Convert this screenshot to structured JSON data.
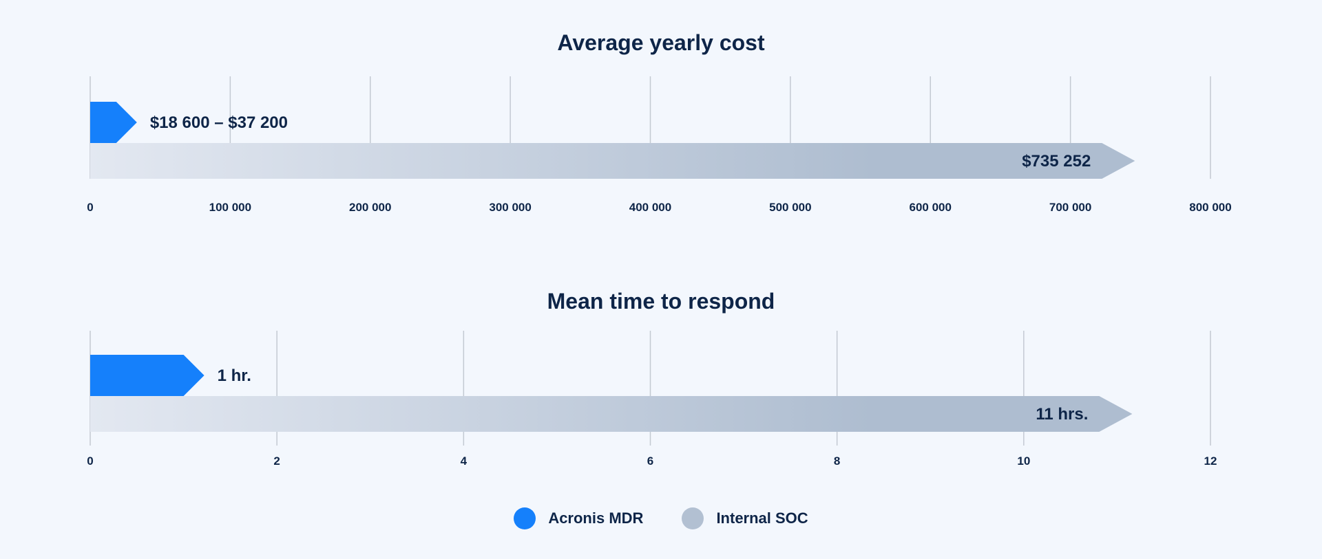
{
  "colors": {
    "acronis": "#1580fb",
    "internal_start": "#e3e8f1",
    "internal_end": "#aebdd0",
    "grid": "#c3c9d2",
    "text": "#0e2548"
  },
  "legend": [
    {
      "name": "Acronis MDR",
      "color": "#1580fb"
    },
    {
      "name": "Internal SOC",
      "color": "#b2c0d2"
    }
  ],
  "chart_data": [
    {
      "type": "bar",
      "orientation": "horizontal",
      "title": "Average yearly cost",
      "xlim": [
        0,
        800000
      ],
      "ticks": [
        0,
        100000,
        200000,
        300000,
        400000,
        500000,
        600000,
        700000,
        800000
      ],
      "tick_labels": [
        "0",
        "100 000",
        "200 000",
        "300 000",
        "400 000",
        "500 000",
        "600 000",
        "700 000",
        "800 000"
      ],
      "grid": true,
      "series": [
        {
          "name": "Acronis MDR",
          "value": 18600,
          "value_high": 37200,
          "label": "$18 600 – $37 200"
        },
        {
          "name": "Internal SOC",
          "value": 735252,
          "label": "$735 252"
        }
      ]
    },
    {
      "type": "bar",
      "orientation": "horizontal",
      "title": "Mean time to respond",
      "xlim": [
        0,
        12
      ],
      "ticks": [
        0,
        2,
        4,
        6,
        8,
        10,
        12
      ],
      "tick_labels": [
        "0",
        "2",
        "4",
        "6",
        "8",
        "10",
        "12"
      ],
      "grid": true,
      "series": [
        {
          "name": "Acronis MDR",
          "value": 1,
          "label": "1 hr."
        },
        {
          "name": "Internal SOC",
          "value": 11,
          "label": "11 hrs."
        }
      ]
    }
  ]
}
